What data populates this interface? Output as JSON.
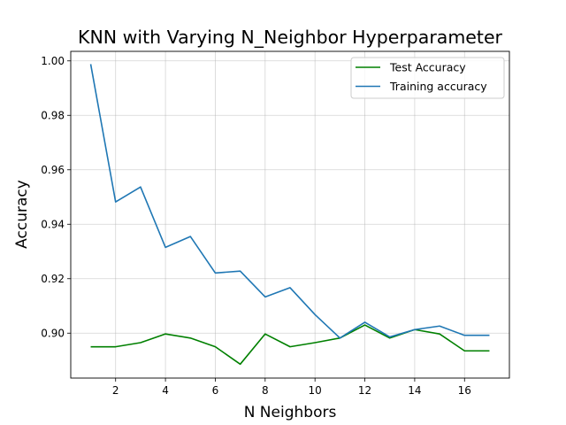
{
  "chart_data": {
    "type": "line",
    "title": "KNN with Varying N_Neighbor Hyperparameter",
    "xlabel": "N Neighbors",
    "ylabel": "Accuracy",
    "x": [
      1,
      2,
      3,
      4,
      5,
      6,
      7,
      8,
      9,
      10,
      11,
      12,
      13,
      14,
      15,
      16,
      17
    ],
    "xlim": [
      0.2,
      17.8
    ],
    "ylim": [
      0.8835,
      1.0035
    ],
    "xticks": [
      2,
      4,
      6,
      8,
      10,
      12,
      14,
      16
    ],
    "yticks": [
      0.9,
      0.92,
      0.94,
      0.96,
      0.98,
      1.0
    ],
    "xtick_labels": [
      "2",
      "4",
      "6",
      "8",
      "10",
      "12",
      "14",
      "16"
    ],
    "ytick_labels": [
      "0.90",
      "0.92",
      "0.94",
      "0.96",
      "0.98",
      "1.00"
    ],
    "grid": true,
    "legend_position": "top-right",
    "series": [
      {
        "name": "Test Accuracy",
        "color": "#008000",
        "values": [
          0.895,
          0.895,
          0.8965,
          0.8997,
          0.8982,
          0.895,
          0.8886,
          0.8997,
          0.895,
          0.8965,
          0.8982,
          0.903,
          0.8982,
          0.9013,
          0.8997,
          0.8935,
          0.8935
        ]
      },
      {
        "name": "Training accuracy",
        "color": "#1f77b4",
        "values": [
          0.9988,
          0.9482,
          0.9537,
          0.9315,
          0.9355,
          0.9221,
          0.9228,
          0.9133,
          0.9167,
          0.9068,
          0.8982,
          0.904,
          0.8986,
          0.9013,
          0.9026,
          0.8992,
          0.8992
        ]
      }
    ]
  }
}
